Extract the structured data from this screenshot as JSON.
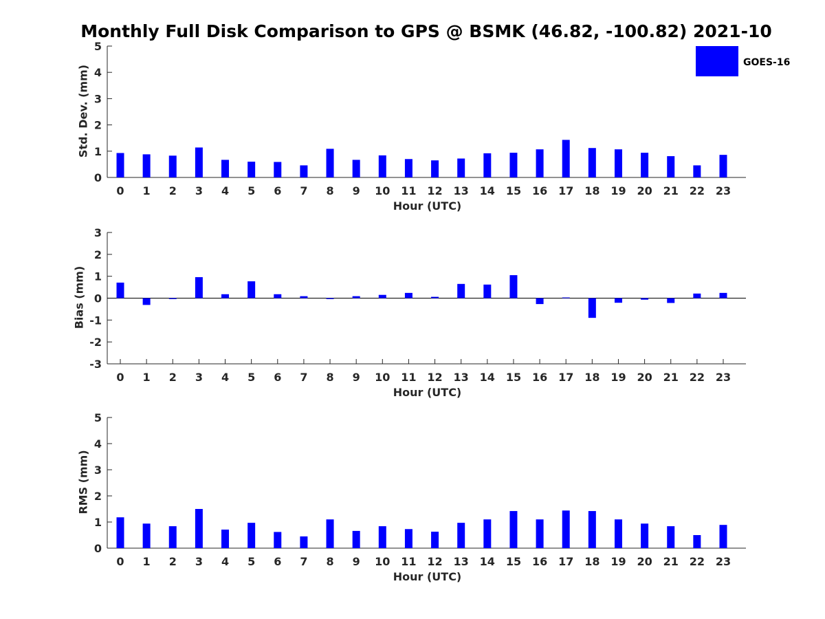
{
  "chart_data": [
    {
      "type": "bar",
      "title": "Monthly Full Disk Comparison to GPS @ BSMK (46.82, -100.82) 2021-10",
      "xlabel": "Hour (UTC)",
      "ylabel": "Std. Dev. (mm)",
      "ylim": [
        0,
        5
      ],
      "yticks": [
        0,
        1,
        2,
        3,
        4,
        5
      ],
      "categories": [
        "0",
        "1",
        "2",
        "3",
        "4",
        "5",
        "6",
        "7",
        "8",
        "9",
        "10",
        "11",
        "12",
        "13",
        "14",
        "15",
        "16",
        "17",
        "18",
        "19",
        "20",
        "21",
        "22",
        "23"
      ],
      "series": [
        {
          "name": "GOES-16",
          "color": "#0000ff",
          "values": [
            0.93,
            0.88,
            0.83,
            1.14,
            0.67,
            0.6,
            0.59,
            0.46,
            1.09,
            0.67,
            0.84,
            0.7,
            0.65,
            0.72,
            0.92,
            0.94,
            1.07,
            1.43,
            1.12,
            1.07,
            0.94,
            0.81,
            0.46,
            0.86
          ]
        }
      ],
      "legend": {
        "position": "top-right",
        "entries": [
          "GOES-16"
        ]
      }
    },
    {
      "type": "bar",
      "xlabel": "Hour (UTC)",
      "ylabel": "Bias (mm)",
      "ylim": [
        -3,
        3
      ],
      "yticks": [
        -3,
        -2,
        -1,
        0,
        1,
        2,
        3
      ],
      "categories": [
        "0",
        "1",
        "2",
        "3",
        "4",
        "5",
        "6",
        "7",
        "8",
        "9",
        "10",
        "11",
        "12",
        "13",
        "14",
        "15",
        "16",
        "17",
        "18",
        "19",
        "20",
        "21",
        "22",
        "23"
      ],
      "series": [
        {
          "name": "GOES-16",
          "color": "#0000ff",
          "values": [
            0.71,
            -0.31,
            -0.04,
            0.96,
            0.18,
            0.77,
            0.18,
            0.09,
            -0.04,
            0.09,
            0.15,
            0.24,
            0.06,
            0.65,
            0.62,
            1.05,
            -0.27,
            0.03,
            -0.9,
            -0.21,
            -0.07,
            -0.22,
            0.21,
            0.24
          ]
        }
      ]
    },
    {
      "type": "bar",
      "xlabel": "Hour (UTC)",
      "ylabel": "RMS (mm)",
      "ylim": [
        0,
        5
      ],
      "yticks": [
        0,
        1,
        2,
        3,
        4,
        5
      ],
      "categories": [
        "0",
        "1",
        "2",
        "3",
        "4",
        "5",
        "6",
        "7",
        "8",
        "9",
        "10",
        "11",
        "12",
        "13",
        "14",
        "15",
        "16",
        "17",
        "18",
        "19",
        "20",
        "21",
        "22",
        "23"
      ],
      "series": [
        {
          "name": "GOES-16",
          "color": "#0000ff",
          "values": [
            1.18,
            0.94,
            0.84,
            1.5,
            0.71,
            0.97,
            0.62,
            0.45,
            1.1,
            0.66,
            0.84,
            0.73,
            0.63,
            0.97,
            1.1,
            1.42,
            1.1,
            1.44,
            1.42,
            1.1,
            0.94,
            0.84,
            0.5,
            0.89
          ]
        }
      ]
    }
  ]
}
